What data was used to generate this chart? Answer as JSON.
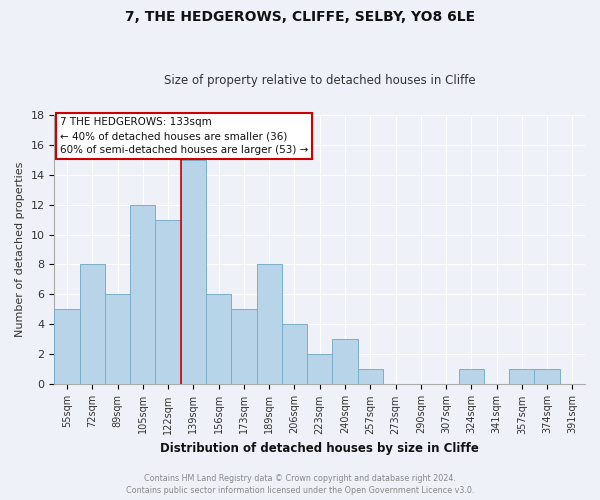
{
  "title": "7, THE HEDGEROWS, CLIFFE, SELBY, YO8 6LE",
  "subtitle": "Size of property relative to detached houses in Cliffe",
  "xlabel": "Distribution of detached houses by size in Cliffe",
  "ylabel": "Number of detached properties",
  "categories": [
    "55sqm",
    "72sqm",
    "89sqm",
    "105sqm",
    "122sqm",
    "139sqm",
    "156sqm",
    "173sqm",
    "189sqm",
    "206sqm",
    "223sqm",
    "240sqm",
    "257sqm",
    "273sqm",
    "290sqm",
    "307sqm",
    "324sqm",
    "341sqm",
    "357sqm",
    "374sqm",
    "391sqm"
  ],
  "bar_values": [
    5,
    8,
    6,
    12,
    11,
    15,
    6,
    5,
    8,
    4,
    2,
    3,
    1,
    0,
    0,
    0,
    1,
    0,
    1,
    1,
    0
  ],
  "bar_color": "#b8d4e8",
  "bar_edge_color": "#7aaec8",
  "highlight_index": 5,
  "annotation_title": "7 THE HEDGEROWS: 133sqm",
  "annotation_line1": "← 40% of detached houses are smaller (36)",
  "annotation_line2": "60% of semi-detached houses are larger (53) →",
  "annotation_box_color": "#ffffff",
  "annotation_box_edge": "#cc0000",
  "ylim": [
    0,
    18
  ],
  "yticks": [
    0,
    2,
    4,
    6,
    8,
    10,
    12,
    14,
    16,
    18
  ],
  "footer_line1": "Contains HM Land Registry data © Crown copyright and database right 2024.",
  "footer_line2": "Contains public sector information licensed under the Open Government Licence v3.0.",
  "background_color": "#eef2f8",
  "grid_color": "#ffffff",
  "spine_color": "#aaaaaa"
}
